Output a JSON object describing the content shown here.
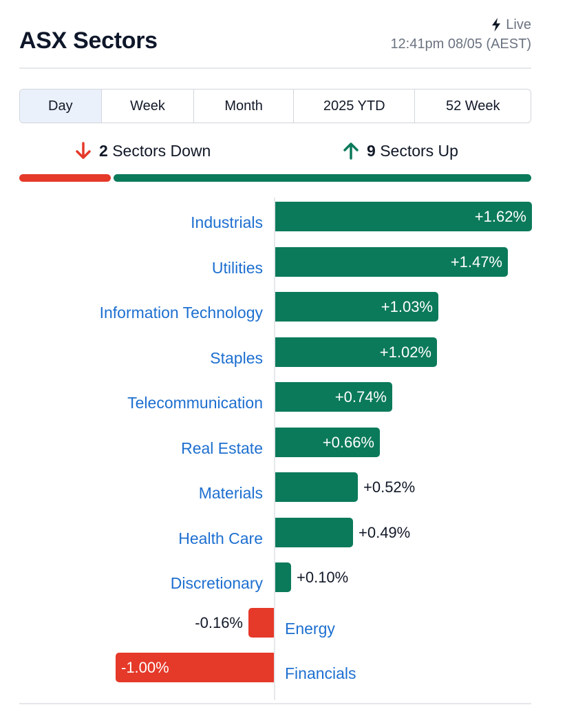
{
  "header": {
    "title": "ASX Sectors",
    "live_label": "Live",
    "timestamp": "12:41pm 08/05 (AEST)"
  },
  "tabs": [
    {
      "label": "Day",
      "active": true
    },
    {
      "label": "Week",
      "active": false
    },
    {
      "label": "Month",
      "active": false
    },
    {
      "label": "2025 YTD",
      "active": false
    },
    {
      "label": "52 Week",
      "active": false
    }
  ],
  "summary": {
    "down_count": "2",
    "down_label": "Sectors Down",
    "up_count": "9",
    "up_label": "Sectors Up",
    "down_fraction": 0.1818,
    "up_fraction": 0.8182
  },
  "colors": {
    "up": "#0b7a5a",
    "down": "#e53929",
    "link": "#1d6fd0"
  },
  "icons": {
    "live": "lightning-bolt-icon",
    "down": "arrow-down-icon",
    "up": "arrow-up-icon"
  },
  "chart_data": {
    "type": "bar",
    "orientation": "horizontal",
    "categories": [
      "Industrials",
      "Utilities",
      "Information Technology",
      "Staples",
      "Telecommunication",
      "Real Estate",
      "Materials",
      "Health Care",
      "Discretionary",
      "Energy",
      "Financials"
    ],
    "values": [
      1.62,
      1.47,
      1.03,
      1.02,
      0.74,
      0.66,
      0.52,
      0.49,
      0.1,
      -0.16,
      -1.0
    ],
    "value_labels": [
      "+1.62%",
      "+1.47%",
      "+1.03%",
      "+1.02%",
      "+0.74%",
      "+0.66%",
      "+0.52%",
      "+0.49%",
      "+0.10%",
      "-0.16%",
      "-1.00%"
    ],
    "unit": "%"
  }
}
